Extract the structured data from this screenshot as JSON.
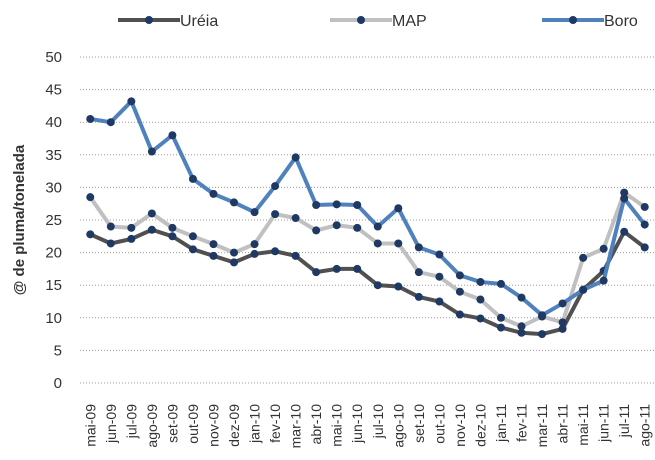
{
  "chart_data": {
    "type": "line",
    "y_label": "@ de pluma/tonelada",
    "categories": [
      "mai-09",
      "jun-09",
      "jul-09",
      "ago-09",
      "set-09",
      "out-09",
      "nov-09",
      "dez-09",
      "jan-10",
      "fev-10",
      "mar-10",
      "abr-10",
      "mai-10",
      "jun-10",
      "jul-10",
      "ago-10",
      "set-10",
      "out-10",
      "nov-10",
      "dez-10",
      "jan-11",
      "fev-11",
      "mar-11",
      "abr-11",
      "mai-11",
      "jun-11",
      "jul-11",
      "ago-11"
    ],
    "series": [
      {
        "name": "Uréia",
        "color": "#505050",
        "values": [
          22.8,
          21.4,
          22.1,
          23.5,
          22.5,
          20.5,
          19.5,
          18.5,
          19.8,
          20.2,
          19.5,
          17,
          17.5,
          17.5,
          15,
          14.8,
          13.2,
          12.5,
          10.5,
          9.9,
          8.5,
          7.7,
          7.5,
          8.3,
          14.3,
          17.2,
          23.2,
          20.8
        ]
      },
      {
        "name": "MAP",
        "color": "#c0c0c0",
        "values": [
          28.5,
          24,
          23.8,
          26,
          23.8,
          22.5,
          21.3,
          20,
          21.3,
          25.9,
          25.3,
          23.4,
          24.2,
          23.8,
          21.4,
          21.4,
          17,
          16.3,
          14,
          12.8,
          10,
          8.7,
          10.2,
          9.3,
          19.2,
          20.6,
          29.2,
          27
        ]
      },
      {
        "name": "Boro",
        "color": "#4f81bd",
        "values": [
          40.5,
          40,
          43.2,
          35.5,
          38,
          31.3,
          29,
          27.7,
          26.2,
          30.2,
          34.6,
          27.3,
          27.4,
          27.3,
          24,
          26.8,
          20.8,
          19.7,
          16.5,
          15.5,
          15.2,
          13.1,
          10.4,
          12.2,
          14.3,
          15.7,
          28.3,
          24.3
        ]
      }
    ],
    "marker_color": "#1f3864",
    "ylim": [
      0,
      50
    ],
    "yticks": [
      0,
      5,
      10,
      15,
      20,
      25,
      30,
      35,
      40,
      45,
      50
    ],
    "grid": true
  }
}
